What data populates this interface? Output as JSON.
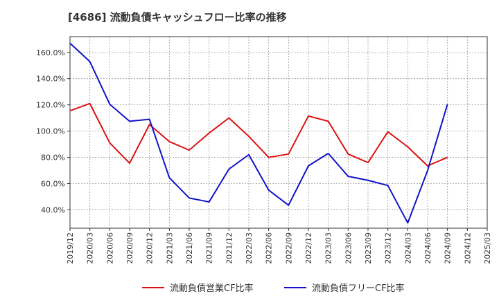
{
  "chart_data": {
    "type": "line",
    "title": "[4686]  流動負債キャッシュフロー比率の推移",
    "x": [
      "2019/12",
      "2020/03",
      "2020/06",
      "2020/09",
      "2020/12",
      "2021/03",
      "2021/06",
      "2021/09",
      "2021/12",
      "2022/03",
      "2022/06",
      "2022/09",
      "2022/12",
      "2023/03",
      "2023/06",
      "2023/09",
      "2023/12",
      "2024/03",
      "2024/06",
      "2024/09",
      "2024/12",
      "2025/03"
    ],
    "ylim": [
      26,
      172
    ],
    "yticks": [
      40,
      60,
      80,
      100,
      120,
      140,
      160
    ],
    "ytick_labels": [
      "40.0%",
      "60.0%",
      "80.0%",
      "100.0%",
      "120.0%",
      "140.0%",
      "160.0%"
    ],
    "grid": true,
    "legend": "bottom",
    "series": [
      {
        "name": "流動負債営業CF比率",
        "color": "#dd1111",
        "values": [
          115.5,
          121,
          91,
          75.5,
          105,
          92,
          85.5,
          98.5,
          110,
          96,
          80,
          82.5,
          111.5,
          107.5,
          82.5,
          76,
          99.5,
          88,
          73.5,
          80,
          null,
          null
        ]
      },
      {
        "name": "流動負債フリーCF比率",
        "color": "#1111cc",
        "values": [
          167,
          153,
          120.5,
          107.5,
          109,
          64.5,
          49,
          46,
          71,
          82,
          55,
          43.5,
          73.5,
          83,
          65.5,
          62.5,
          58.5,
          30,
          70,
          120.5,
          null,
          null
        ]
      }
    ]
  }
}
